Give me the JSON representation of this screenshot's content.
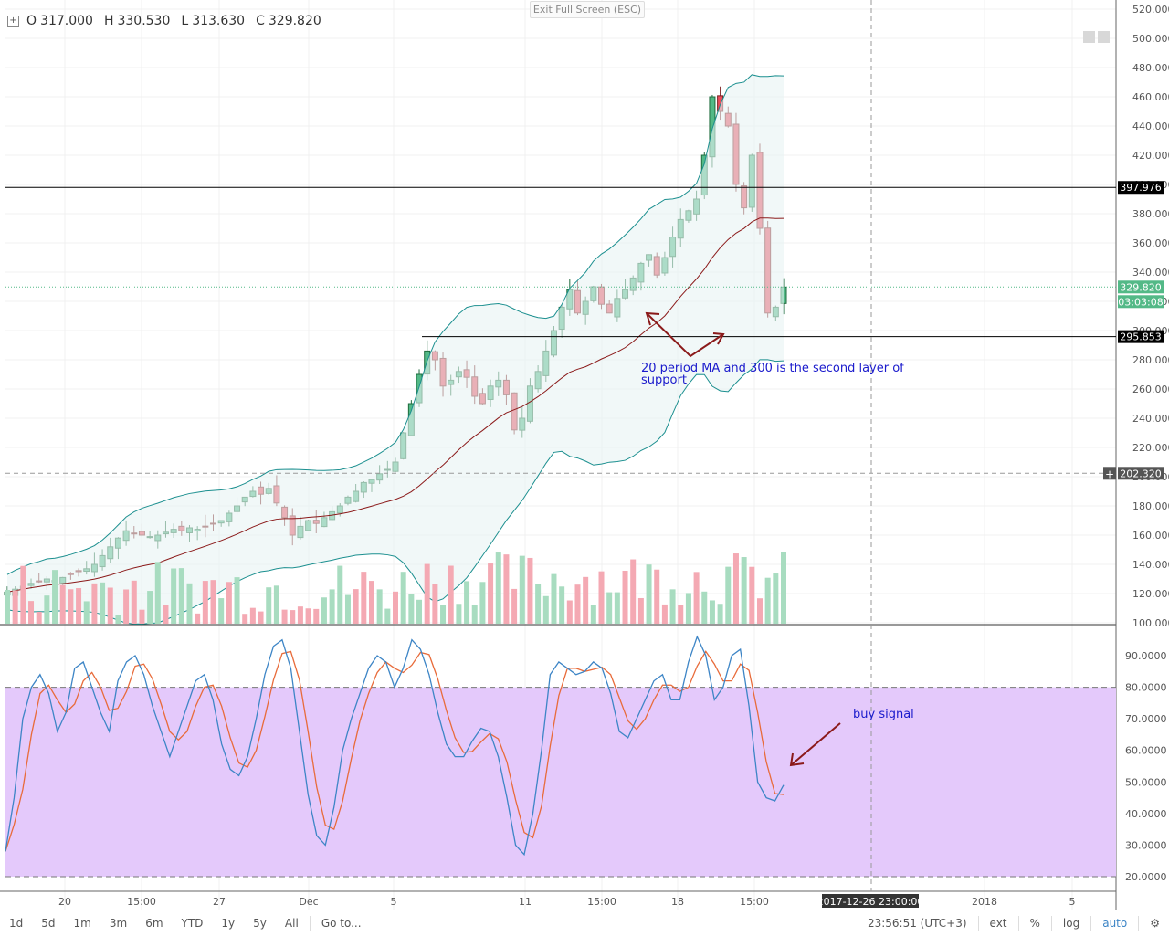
{
  "ohlc": {
    "o_label": "O",
    "o": "317.000",
    "h_label": "H",
    "h": "330.530",
    "l_label": "L",
    "l": "313.630",
    "c_label": "C",
    "c": "329.820"
  },
  "exit_fullscreen": "Exit Full Screen (ESC)",
  "price_axis_labels": [
    "520.000",
    "500.000",
    "480.000",
    "460.000",
    "440.000",
    "420.000",
    "400.000",
    "380.000",
    "360.000",
    "340.000",
    "320.000",
    "300.000",
    "280.000",
    "260.000",
    "240.000",
    "220.000",
    "200.000",
    "180.000",
    "160.000",
    "140.000",
    "120.000",
    "100.000"
  ],
  "osc_axis_labels": [
    "90.0000",
    "80.0000",
    "70.0000",
    "60.0000",
    "50.0000",
    "40.0000",
    "30.0000",
    "20.0000"
  ],
  "time_labels": [
    "20",
    "15:00",
    "27",
    "Dec",
    "5",
    "11",
    "15:00",
    "18",
    "15:00",
    "2018",
    "5"
  ],
  "crosshair_time": "2017-12-26 23:00:00",
  "price_tags": {
    "resistance": "397.976",
    "last": "329.820",
    "countdown": "03:03:08",
    "support": "295.853",
    "cursor": "202.320"
  },
  "annotations": {
    "support_note": "20 period MA and 300 is the second layer of support",
    "buy_signal": "buy signal"
  },
  "toolbar": {
    "ranges": [
      "1d",
      "5d",
      "1m",
      "3m",
      "6m",
      "YTD",
      "1y",
      "5y",
      "All"
    ],
    "goto": "Go to...",
    "clock": "23:56:51 (UTC+3)",
    "ext": "ext",
    "pct": "%",
    "log": "log",
    "auto": "auto"
  },
  "colors": {
    "up": "#53b987",
    "down": "#eb4d5c",
    "band": "#1b8f8f",
    "ma": "#8b1a1a",
    "stoch_k": "#3d85c6",
    "stoch_d": "#e86b3a",
    "stoch_bg": "#e4c9fb",
    "accent": "#3d85c6"
  },
  "icons": {
    "settings": "gear-icon",
    "expand": "plus-box-icon"
  },
  "chart_data": {
    "type": "candlestick",
    "ylim": [
      95,
      522
    ],
    "horizontal_levels": [
      397.976,
      295.853
    ],
    "last_price": 329.82,
    "candles_close": [
      121,
      123,
      125,
      127,
      128,
      130,
      129,
      131,
      133,
      135,
      137,
      140,
      146,
      152,
      158,
      163,
      161,
      160,
      159,
      160,
      162,
      164,
      163,
      165,
      164,
      166,
      168,
      170,
      175,
      180,
      186,
      190,
      188,
      192,
      182,
      172,
      160,
      166,
      170,
      168,
      172,
      176,
      180,
      186,
      190,
      196,
      198,
      202,
      205,
      210,
      230,
      250,
      270,
      286,
      280,
      262,
      266,
      272,
      268,
      255,
      250,
      262,
      266,
      256,
      232,
      240,
      262,
      272,
      286,
      300,
      316,
      328,
      312,
      320,
      330,
      318,
      312,
      322,
      328,
      336,
      346,
      352,
      338,
      350,
      364,
      376,
      382,
      390,
      420,
      460,
      450,
      440,
      400,
      384,
      420,
      370,
      312,
      316,
      329.8
    ],
    "stochastic": {
      "k": [
        28,
        45,
        70,
        80,
        84,
        78,
        66,
        72,
        86,
        88,
        80,
        72,
        66,
        82,
        88,
        90,
        84,
        74,
        66,
        58,
        66,
        74,
        82,
        84,
        76,
        62,
        54,
        52,
        58,
        70,
        84,
        93,
        95,
        86,
        66,
        46,
        33,
        30,
        42,
        60,
        70,
        78,
        86,
        90,
        88,
        80,
        86,
        95,
        92,
        84,
        72,
        62,
        58,
        58,
        63,
        67,
        66,
        58,
        45,
        30,
        27,
        40,
        60,
        84,
        88,
        86,
        84,
        85,
        88,
        86,
        78,
        66,
        64,
        70,
        76,
        82,
        84,
        76,
        76,
        88,
        96,
        90,
        76,
        80,
        90,
        92,
        74,
        50,
        45,
        44,
        49
      ]
    },
    "volume_note": "volume bars shown with 20-period volume MA"
  }
}
